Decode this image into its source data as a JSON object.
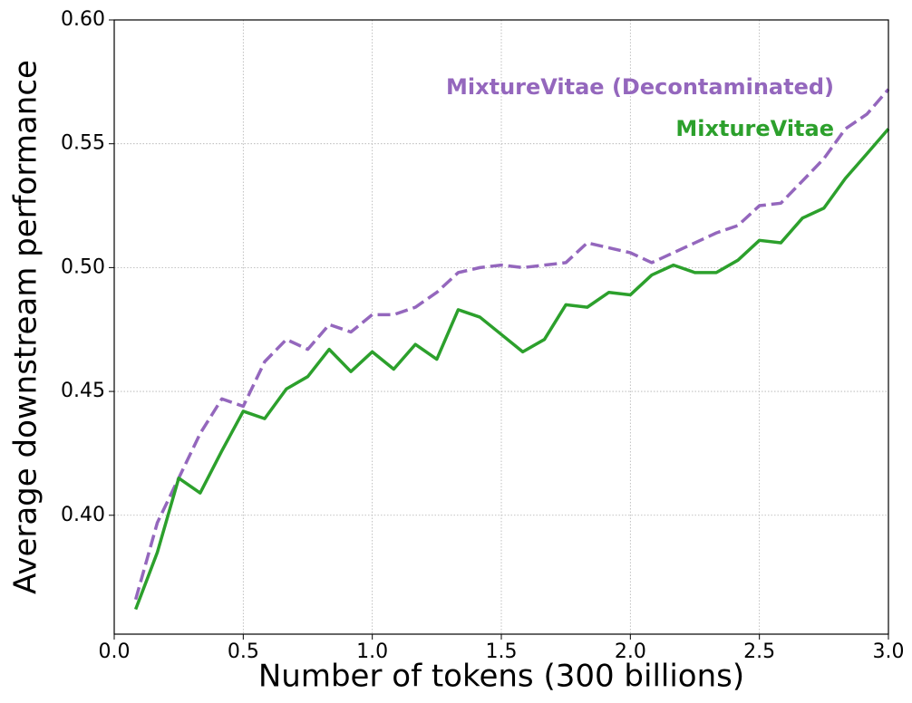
{
  "chart_data": {
    "type": "line",
    "xlabel": "Number of tokens (300 billions)",
    "ylabel": "Average downstream performance",
    "x": [
      0.083,
      0.167,
      0.25,
      0.333,
      0.417,
      0.5,
      0.583,
      0.667,
      0.75,
      0.833,
      0.917,
      1.0,
      1.083,
      1.167,
      1.25,
      1.333,
      1.417,
      1.5,
      1.583,
      1.667,
      1.75,
      1.833,
      1.917,
      2.0,
      2.083,
      2.167,
      2.25,
      2.333,
      2.417,
      2.5,
      2.583,
      2.667,
      2.75,
      2.833,
      2.917,
      3.0
    ],
    "series": [
      {
        "name": "MixtureVitae (Decontaminated)",
        "color": "#9467bd",
        "dash": true,
        "values": [
          0.366,
          0.397,
          0.415,
          0.433,
          0.447,
          0.444,
          0.462,
          0.471,
          0.467,
          0.477,
          0.474,
          0.481,
          0.481,
          0.484,
          0.49,
          0.498,
          0.5,
          0.501,
          0.5,
          0.501,
          0.502,
          0.51,
          0.508,
          0.506,
          0.502,
          0.506,
          0.51,
          0.514,
          0.517,
          0.525,
          0.526,
          0.535,
          0.544,
          0.556,
          0.562,
          0.572
        ]
      },
      {
        "name": "MixtureVitae",
        "color": "#2ca02c",
        "dash": false,
        "values": [
          0.362,
          0.385,
          0.415,
          0.409,
          0.426,
          0.442,
          0.439,
          0.451,
          0.456,
          0.467,
          0.458,
          0.466,
          0.459,
          0.469,
          0.463,
          0.483,
          0.48,
          0.473,
          0.466,
          0.471,
          0.485,
          0.484,
          0.49,
          0.489,
          0.497,
          0.501,
          0.498,
          0.498,
          0.503,
          0.511,
          0.51,
          0.52,
          0.524,
          0.536,
          0.546,
          0.556
        ]
      }
    ],
    "xlim": [
      0,
      3.0
    ],
    "xticks": [
      {
        "value": 0,
        "label": "0.0"
      },
      0.5,
      {
        "value": 1,
        "label": "1.0"
      },
      1.5,
      {
        "value": 2,
        "label": "2.0"
      },
      2.5,
      {
        "value": 3,
        "label": "3.0"
      }
    ],
    "ylim": [
      0.352,
      0.6
    ],
    "yticks": [
      {
        "value": 0.4,
        "label": "0.40"
      },
      0.45,
      {
        "value": 0.5,
        "label": "0.50"
      },
      0.55,
      {
        "value": 0.6,
        "label": "0.60"
      }
    ],
    "grid": true
  }
}
